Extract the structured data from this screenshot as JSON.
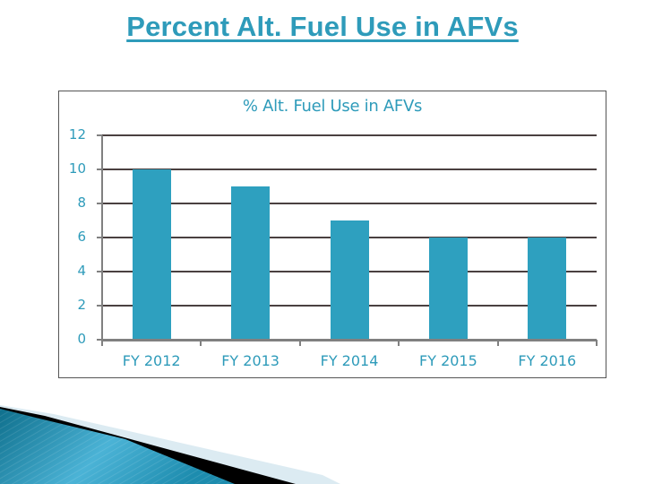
{
  "slide": {
    "title": "Percent Alt. Fuel Use in AFVs"
  },
  "colors": {
    "accent": "#2E9BBA",
    "bar": "#2EA0BF",
    "gridline": "#4a4040",
    "axis": "#808080",
    "frame": "#555555"
  },
  "chart_data": {
    "type": "bar",
    "title": "% Alt. Fuel Use in AFVs",
    "xlabel": "",
    "ylabel": "",
    "categories": [
      "FY 2012",
      "FY 2013",
      "FY 2014",
      "FY 2015",
      "FY 2016"
    ],
    "values": [
      10,
      9,
      7,
      6,
      6
    ],
    "ylim": [
      0,
      12
    ],
    "yticks": [
      0,
      2,
      4,
      6,
      8,
      10,
      12
    ],
    "grid": true,
    "legend": null
  }
}
